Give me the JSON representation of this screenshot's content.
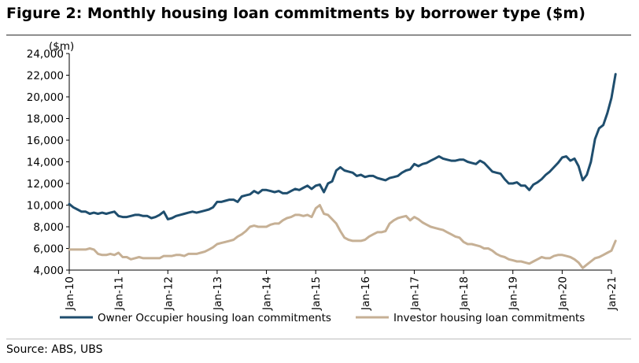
{
  "title": "Figure 2: Monthly housing loan commitments by borrower type ($m)",
  "source": "Source: ABS, UBS",
  "chart_data": {
    "type": "line",
    "ylabel": "($m)",
    "xlabel": "",
    "ylim": [
      4000,
      24000
    ],
    "yticks": [
      4000,
      6000,
      8000,
      10000,
      12000,
      14000,
      16000,
      18000,
      20000,
      22000,
      24000
    ],
    "ytick_labels": [
      "4,000",
      "6,000",
      "8,000",
      "10,000",
      "12,000",
      "14,000",
      "16,000",
      "18,000",
      "20,000",
      "22,000",
      "24,000"
    ],
    "xticks": [
      "Jan-10",
      "Jan-11",
      "Jan-12",
      "Jan-13",
      "Jan-14",
      "Jan-15",
      "Jan-16",
      "Jan-17",
      "Jan-18",
      "Jan-19",
      "Jan-20",
      "Jan-21"
    ],
    "x_start": "Jan-10",
    "x_end": "Jan-21",
    "frequency": "monthly",
    "grid": "none",
    "legend_position": "bottom",
    "series": [
      {
        "name": "Owner Occupier housing loan commitments",
        "color": "#1f4e6e",
        "values": [
          10100,
          9800,
          9600,
          9400,
          9400,
          9200,
          9300,
          9200,
          9300,
          9200,
          9300,
          9400,
          9000,
          8900,
          8900,
          9000,
          9100,
          9100,
          9000,
          9000,
          8800,
          8900,
          9100,
          9400,
          8700,
          8800,
          9000,
          9100,
          9200,
          9300,
          9400,
          9300,
          9400,
          9500,
          9600,
          9800,
          10300,
          10300,
          10400,
          10500,
          10500,
          10300,
          10800,
          10900,
          11000,
          11300,
          11100,
          11400,
          11400,
          11300,
          11200,
          11300,
          11100,
          11100,
          11300,
          11500,
          11400,
          11600,
          11800,
          11500,
          11800,
          11900,
          11200,
          12000,
          12200,
          13200,
          13500,
          13200,
          13100,
          13000,
          12700,
          12800,
          12600,
          12700,
          12700,
          12500,
          12400,
          12300,
          12500,
          12600,
          12700,
          13000,
          13200,
          13300,
          13800,
          13600,
          13800,
          13900,
          14100,
          14300,
          14500,
          14300,
          14200,
          14100,
          14100,
          14200,
          14200,
          14000,
          13900,
          13800,
          14100,
          13900,
          13500,
          13100,
          13000,
          12900,
          12400,
          12000,
          12000,
          12100,
          11800,
          11800,
          11400,
          11900,
          12100,
          12400,
          12800,
          13100,
          13500,
          13900,
          14400,
          14500,
          14100,
          14300,
          13600,
          12300,
          12800,
          14000,
          16100,
          17100,
          17400,
          18500,
          19900,
          22100
        ]
      },
      {
        "name": "Investor housing loan commitments",
        "color": "#c6b095",
        "values": [
          5900,
          5900,
          5900,
          5900,
          5900,
          6000,
          5900,
          5500,
          5400,
          5400,
          5500,
          5400,
          5600,
          5200,
          5200,
          5000,
          5100,
          5200,
          5100,
          5100,
          5100,
          5100,
          5100,
          5300,
          5300,
          5300,
          5400,
          5400,
          5300,
          5500,
          5500,
          5500,
          5600,
          5700,
          5900,
          6100,
          6400,
          6500,
          6600,
          6700,
          6800,
          7100,
          7300,
          7600,
          8000,
          8100,
          8000,
          8000,
          8000,
          8200,
          8300,
          8300,
          8600,
          8800,
          8900,
          9100,
          9100,
          9000,
          9100,
          8900,
          9700,
          10000,
          9200,
          9100,
          8700,
          8300,
          7600,
          7000,
          6800,
          6700,
          6700,
          6700,
          6800,
          7100,
          7300,
          7500,
          7500,
          7600,
          8300,
          8600,
          8800,
          8900,
          9000,
          8600,
          8900,
          8700,
          8400,
          8200,
          8000,
          7900,
          7800,
          7700,
          7500,
          7300,
          7100,
          7000,
          6600,
          6400,
          6400,
          6300,
          6200,
          6000,
          6000,
          5800,
          5500,
          5300,
          5200,
          5000,
          4900,
          4800,
          4800,
          4700,
          4600,
          4800,
          5000,
          5200,
          5100,
          5100,
          5300,
          5400,
          5400,
          5300,
          5200,
          5000,
          4700,
          4200,
          4500,
          4800,
          5100,
          5200,
          5400,
          5600,
          5800,
          6700
        ]
      }
    ]
  }
}
